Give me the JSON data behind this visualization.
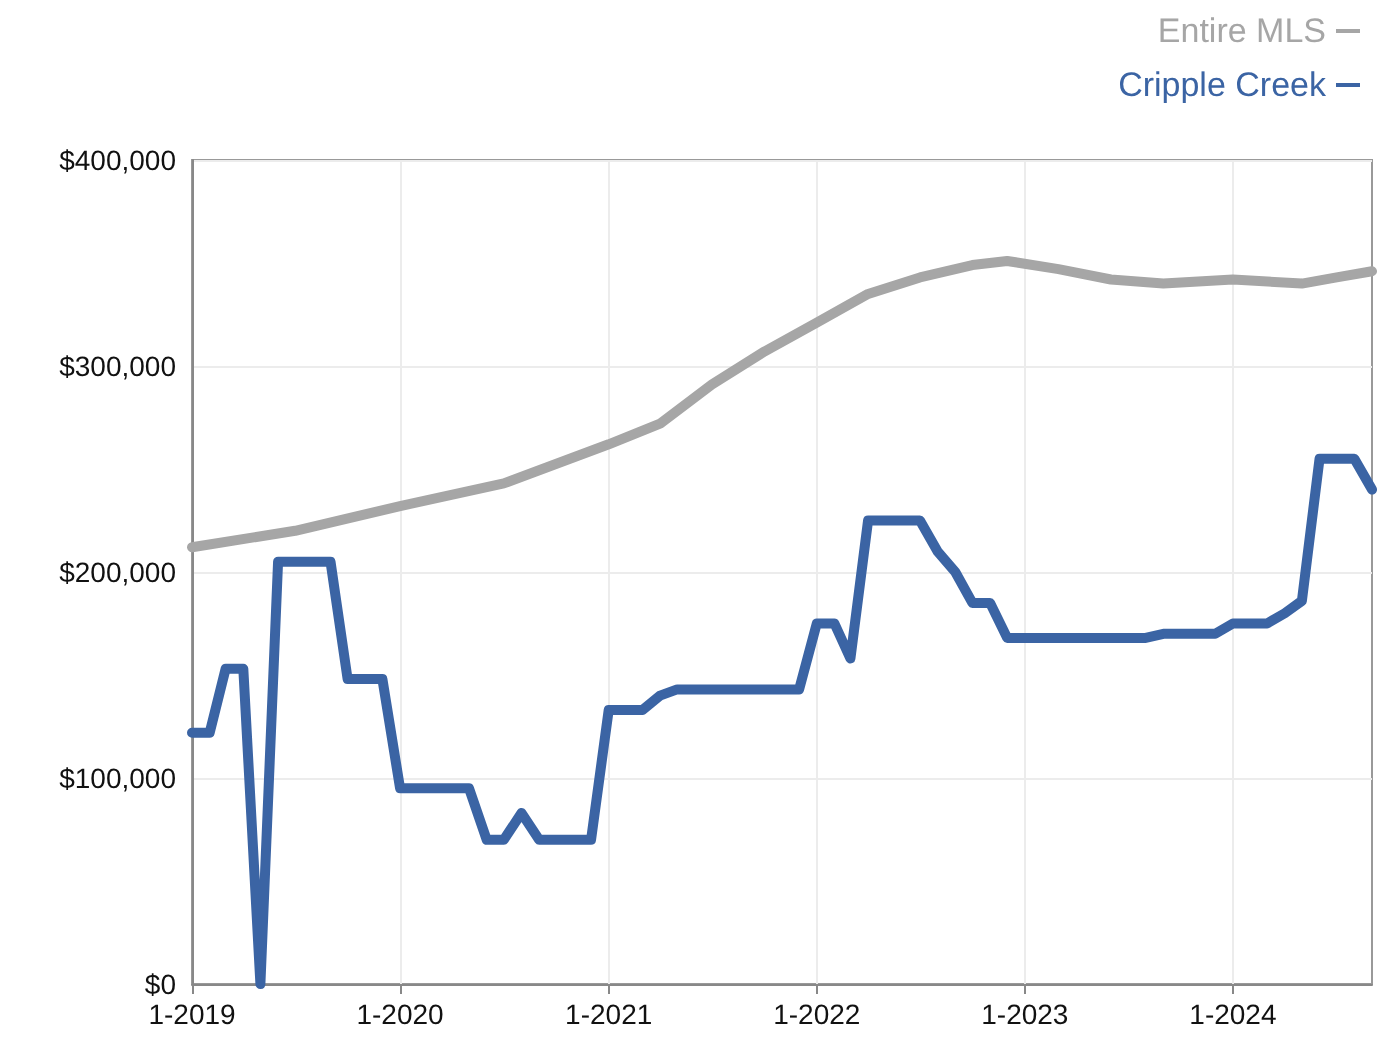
{
  "chart_data": {
    "type": "line",
    "legend": "top right",
    "grid": true,
    "marker": "none",
    "line_style": "solid",
    "xlim": [
      "2019-01",
      "2024-09"
    ],
    "xticks": [
      {
        "value": "2019-01",
        "label": "1-2019"
      },
      {
        "value": "2020-01",
        "label": "1-2020"
      },
      {
        "value": "2021-01",
        "label": "1-2021"
      },
      {
        "value": "2022-01",
        "label": "1-2022"
      },
      {
        "value": "2023-01",
        "label": "1-2023"
      },
      {
        "value": "2024-01",
        "label": "1-2024"
      }
    ],
    "ylim": [
      0,
      400000
    ],
    "yticks": [
      {
        "value": 0,
        "label": "$0"
      },
      {
        "value": 100000,
        "label": "$100,000"
      },
      {
        "value": 200000,
        "label": "$200,000"
      },
      {
        "value": 300000,
        "label": "$300,000"
      },
      {
        "value": 400000,
        "label": "$400,000"
      }
    ],
    "series": [
      {
        "name": "Entire MLS",
        "color": "#a6a6a6",
        "x": [
          "2019-01",
          "2019-07",
          "2020-01",
          "2020-07",
          "2021-01",
          "2021-04",
          "2021-07",
          "2021-10",
          "2022-01",
          "2022-04",
          "2022-07",
          "2022-10",
          "2022-12",
          "2023-03",
          "2023-06",
          "2023-09",
          "2024-01",
          "2024-05",
          "2024-07",
          "2024-09"
        ],
        "values": [
          212000,
          220000,
          232000,
          243000,
          262000,
          272000,
          291000,
          307000,
          321000,
          335000,
          343000,
          349000,
          351000,
          347000,
          342000,
          340000,
          342000,
          340000,
          343000,
          346000
        ]
      },
      {
        "name": "Cripple Creek",
        "color": "#3b64a4",
        "x": [
          "2019-01",
          "2019-02",
          "2019-03",
          "2019-04",
          "2019-05",
          "2019-06",
          "2019-07",
          "2019-08",
          "2019-09",
          "2019-10",
          "2019-11",
          "2019-12",
          "2020-01",
          "2020-02",
          "2020-03",
          "2020-04",
          "2020-05",
          "2020-06",
          "2020-07",
          "2020-08",
          "2020-09",
          "2020-10",
          "2020-11",
          "2020-12",
          "2021-01",
          "2021-02",
          "2021-03",
          "2021-04",
          "2021-05",
          "2021-06",
          "2021-07",
          "2021-08",
          "2021-09",
          "2021-10",
          "2021-11",
          "2021-12",
          "2022-01",
          "2022-02",
          "2022-03",
          "2022-04",
          "2022-05",
          "2022-06",
          "2022-07",
          "2022-08",
          "2022-09",
          "2022-10",
          "2022-11",
          "2022-12",
          "2023-01",
          "2023-02",
          "2023-03",
          "2023-04",
          "2023-05",
          "2023-06",
          "2023-07",
          "2023-08",
          "2023-09",
          "2023-10",
          "2023-11",
          "2023-12",
          "2024-01",
          "2024-02",
          "2024-03",
          "2024-04",
          "2024-05",
          "2024-06",
          "2024-07",
          "2024-08",
          "2024-09"
        ],
        "values": [
          122000,
          122000,
          153000,
          153000,
          0,
          205000,
          205000,
          205000,
          205000,
          148000,
          148000,
          148000,
          95000,
          95000,
          95000,
          95000,
          95000,
          70000,
          70000,
          83000,
          70000,
          70000,
          70000,
          70000,
          133000,
          133000,
          133000,
          140000,
          143000,
          143000,
          143000,
          143000,
          143000,
          143000,
          143000,
          143000,
          175000,
          175000,
          158000,
          225000,
          225000,
          225000,
          225000,
          210000,
          200000,
          185000,
          185000,
          168000,
          168000,
          168000,
          168000,
          168000,
          168000,
          168000,
          168000,
          168000,
          170000,
          170000,
          170000,
          170000,
          175000,
          175000,
          175000,
          180000,
          186000,
          255000,
          255000,
          255000,
          240000
        ]
      }
    ]
  }
}
